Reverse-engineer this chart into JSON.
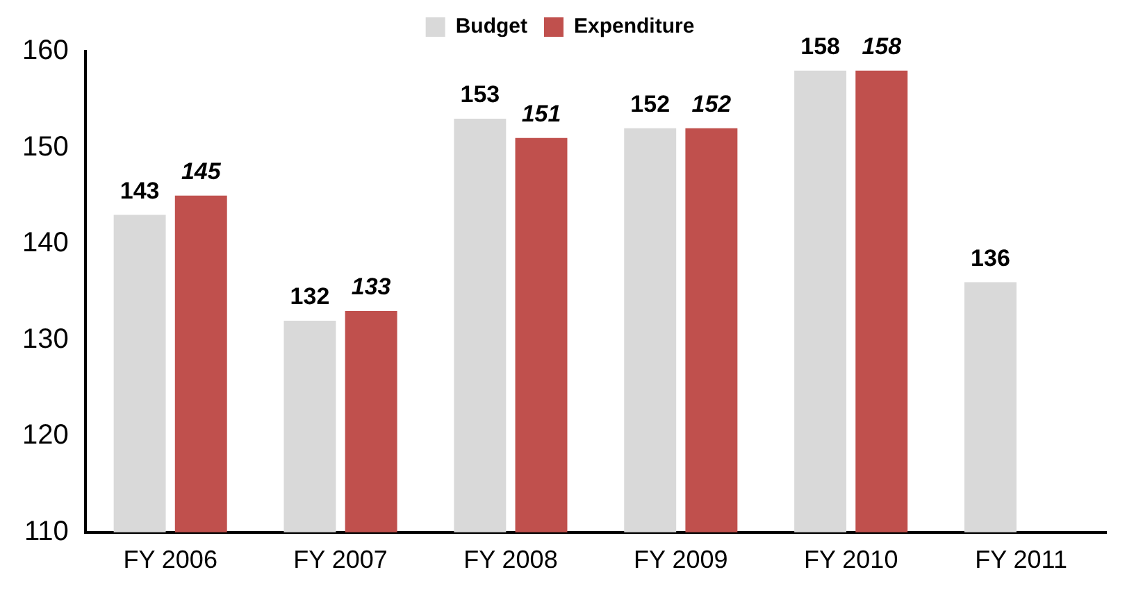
{
  "chart_data": {
    "type": "bar",
    "categories": [
      "FY 2006",
      "FY 2007",
      "FY 2008",
      "FY 2009",
      "FY 2010",
      "FY 2011"
    ],
    "series": [
      {
        "name": "Budget",
        "color": "#d9d9d9",
        "values": [
          143,
          132,
          153,
          152,
          158,
          136
        ]
      },
      {
        "name": "Expenditure",
        "color": "#c0504d",
        "values": [
          145,
          133,
          151,
          152,
          158,
          null
        ]
      }
    ],
    "ylim": [
      110,
      160
    ],
    "yticks": [
      110,
      120,
      130,
      140,
      150,
      160
    ],
    "grid": false,
    "legend": "top",
    "data_labels": true
  }
}
